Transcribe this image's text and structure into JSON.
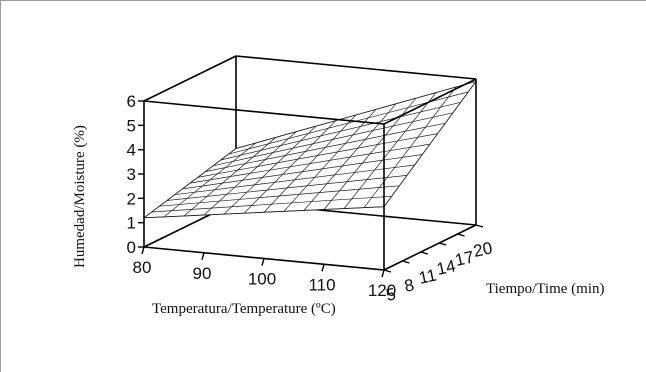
{
  "chart_data": {
    "type": "surface",
    "title": "",
    "xlabel": "Temperatura/Temperature (ºC)",
    "ylabel": "Tiempo/Time (min)",
    "zlabel": "Humedad/Moisture (%)",
    "x_ticks": [
      80,
      90,
      100,
      110,
      120
    ],
    "y_ticks": [
      5,
      8,
      11,
      14,
      17,
      20
    ],
    "z_ticks": [
      0,
      1,
      2,
      3,
      4,
      5,
      6
    ],
    "xlim": [
      80,
      120
    ],
    "ylim": [
      5,
      20
    ],
    "zlim": [
      0,
      6
    ],
    "surface_corners": [
      {
        "x": 80,
        "y": 5,
        "z": 1.2
      },
      {
        "x": 120,
        "y": 5,
        "z": 2.6
      },
      {
        "x": 80,
        "y": 20,
        "z": 2.2
      },
      {
        "x": 120,
        "y": 20,
        "z": 5.9
      }
    ],
    "grid_lines_per_axis": 13
  }
}
